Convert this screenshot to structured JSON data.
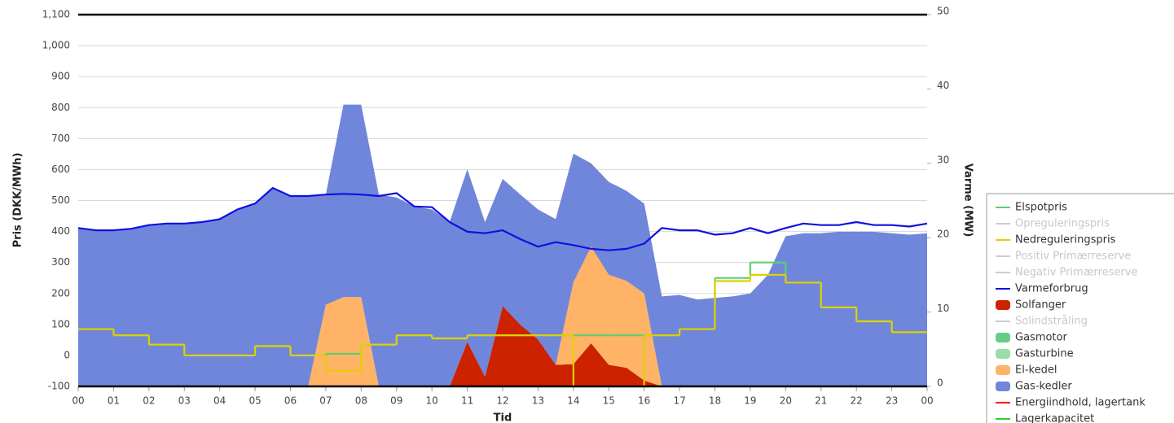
{
  "chart_data": {
    "type": "area",
    "x_label": "Tid",
    "y_label": "Pris (DKK/MWh)",
    "y2_label": "Varme (MW)",
    "xlim": [
      0,
      24
    ],
    "xticks": [
      {
        "value": 0,
        "label": "00"
      },
      {
        "value": 1,
        "label": "01"
      },
      {
        "value": 2,
        "label": "02"
      },
      {
        "value": 3,
        "label": "03"
      },
      {
        "value": 4,
        "label": "04"
      },
      {
        "value": 5,
        "label": "05"
      },
      {
        "value": 6,
        "label": "06"
      },
      {
        "value": 7,
        "label": "07"
      },
      {
        "value": 8,
        "label": "08"
      },
      {
        "value": 9,
        "label": "09"
      },
      10,
      11,
      12,
      13,
      14,
      15,
      16,
      17,
      18,
      19,
      20,
      21,
      22,
      23,
      {
        "value": 24,
        "label": "00"
      }
    ],
    "ylim": [
      -100,
      1100
    ],
    "yticks": [
      -100,
      0,
      100,
      200,
      300,
      400,
      500,
      600,
      700,
      800,
      900,
      {
        "value": 1000,
        "label": "1,000"
      },
      {
        "value": 1100,
        "label": "1,100"
      }
    ],
    "y2lim": [
      0,
      50
    ],
    "y2ticks": [
      0,
      10,
      20,
      30,
      40,
      50
    ],
    "grid": true,
    "legend": "right",
    "x": [
      0,
      0.5,
      1,
      1.5,
      2,
      2.5,
      3,
      3.5,
      4,
      4.5,
      5,
      5.5,
      6,
      6.5,
      7,
      7.5,
      8,
      8.5,
      9,
      9.5,
      10,
      10.5,
      11,
      11.5,
      12,
      12.5,
      13,
      13.5,
      14,
      14.5,
      15,
      15.5,
      16,
      16.5,
      17,
      17.5,
      18,
      18.5,
      19,
      19.5,
      20,
      20.5,
      21,
      21.5,
      22,
      22.5,
      23,
      23.5,
      24
    ],
    "series": [
      {
        "name": "Elspotpris",
        "color": "#5fcf6f",
        "kind": "step",
        "axis": "y",
        "visible": true,
        "x": [
          0,
          1,
          2,
          3,
          4,
          5,
          6,
          7,
          8,
          9,
          10,
          11,
          12,
          13,
          14,
          15,
          16,
          17,
          18,
          19,
          20,
          21,
          22,
          23
        ],
        "values": [
          85,
          65,
          35,
          0,
          0,
          30,
          0,
          5,
          35,
          65,
          55,
          65,
          65,
          65,
          65,
          65,
          65,
          85,
          250,
          300,
          235,
          155,
          110,
          75
        ]
      },
      {
        "name": "Opreguleringspris",
        "color": "#cccccc",
        "kind": "line",
        "visible": false
      },
      {
        "name": "Nedreguleringspris",
        "color": "#e0d000",
        "kind": "step",
        "axis": "y",
        "visible": true,
        "x": [
          0,
          1,
          2,
          3,
          4,
          5,
          6,
          7,
          8,
          9,
          10,
          11,
          12,
          13,
          14,
          15,
          16,
          17,
          18,
          19,
          20,
          21,
          22,
          23
        ],
        "values": [
          85,
          65,
          35,
          0,
          0,
          30,
          0,
          -50,
          35,
          65,
          55,
          65,
          65,
          65,
          -100,
          -100,
          65,
          85,
          240,
          260,
          235,
          155,
          110,
          75
        ]
      },
      {
        "name": "Positiv Primærreserve",
        "color": "#cccccc",
        "kind": "line",
        "visible": false
      },
      {
        "name": "Negativ Primærreserve",
        "color": "#cccccc",
        "kind": "line",
        "visible": false
      },
      {
        "name": "Varmeforbrug",
        "color": "#1010e0",
        "kind": "line",
        "axis": "y2",
        "visible": true,
        "values": [
          21.3,
          21.0,
          21.0,
          21.2,
          21.7,
          21.9,
          21.9,
          22.1,
          22.5,
          23.8,
          24.6,
          26.7,
          25.6,
          25.6,
          25.8,
          25.9,
          25.8,
          25.6,
          26.0,
          24.2,
          24.1,
          22.1,
          20.8,
          20.6,
          21.0,
          19.8,
          18.8,
          19.4,
          19.0,
          18.5,
          18.3,
          18.5,
          19.2,
          21.3,
          21.0,
          21.0,
          20.4,
          20.6,
          21.3,
          20.6,
          21.3,
          21.9,
          21.7,
          21.7,
          22.1,
          21.7,
          21.7,
          21.5,
          21.9
        ]
      },
      {
        "name": "Solfanger",
        "color": "#cc2200",
        "kind": "area",
        "axis": "y2",
        "visible": true,
        "values": [
          0,
          0,
          0,
          0,
          0,
          0,
          0,
          0,
          0,
          0,
          0,
          0,
          0,
          0,
          0,
          0,
          0,
          0,
          0,
          0,
          0,
          0,
          6,
          1.3,
          10.8,
          8.3,
          6.3,
          2.9,
          3,
          5.8,
          2.9,
          2.5,
          0.8,
          0,
          0,
          0,
          0,
          0,
          0,
          0,
          0,
          0,
          0,
          0,
          0,
          0,
          0,
          0,
          0
        ]
      },
      {
        "name": "Solindstråling",
        "color": "#cccccc",
        "kind": "line",
        "visible": false
      },
      {
        "name": "Gasmotor",
        "color": "#66cc88",
        "kind": "area",
        "visible": true
      },
      {
        "name": "Gasturbine",
        "color": "#99ddaa",
        "kind": "area",
        "visible": true
      },
      {
        "name": "El-kedel",
        "color": "#ffb366",
        "kind": "area",
        "axis": "y2",
        "visible": true,
        "values": [
          0,
          0,
          0,
          0,
          0,
          0,
          0,
          0,
          0,
          0,
          0,
          0,
          0,
          0,
          11,
          12,
          12,
          0,
          0,
          0,
          0,
          0,
          0,
          0,
          0,
          0,
          0,
          0,
          11,
          13,
          12.1,
          11.7,
          11.7,
          0,
          0,
          0,
          0,
          0,
          0,
          0,
          0,
          0,
          0,
          0,
          0,
          0,
          0,
          0,
          0
        ]
      },
      {
        "name": "Gas-kedler",
        "color": "#7086da",
        "kind": "area",
        "axis": "y2",
        "visible": true,
        "values": [
          21.3,
          21.0,
          21.0,
          21.2,
          21.7,
          21.9,
          21.9,
          22.1,
          22.5,
          23.8,
          24.6,
          26.7,
          25.6,
          25.6,
          14.8,
          25.9,
          25.9,
          25.8,
          25.4,
          24.2,
          23.8,
          22.1,
          23.2,
          20.8,
          17.1,
          17.5,
          17.5,
          19.6,
          17.3,
          11.2,
          12.5,
          12.1,
          12.1,
          12.1,
          12.3,
          11.7,
          11.9,
          12.1,
          12.5,
          15,
          20.2,
          20.6,
          20.6,
          20.8,
          20.8,
          20.8,
          20.6,
          20.4,
          20.6
        ]
      },
      {
        "name": "Energiindhold, lagertank",
        "color": "#ff0000",
        "kind": "line",
        "visible": true
      },
      {
        "name": "Lagerkapacitet",
        "color": "#33cc33",
        "kind": "line",
        "visible": true
      }
    ]
  }
}
